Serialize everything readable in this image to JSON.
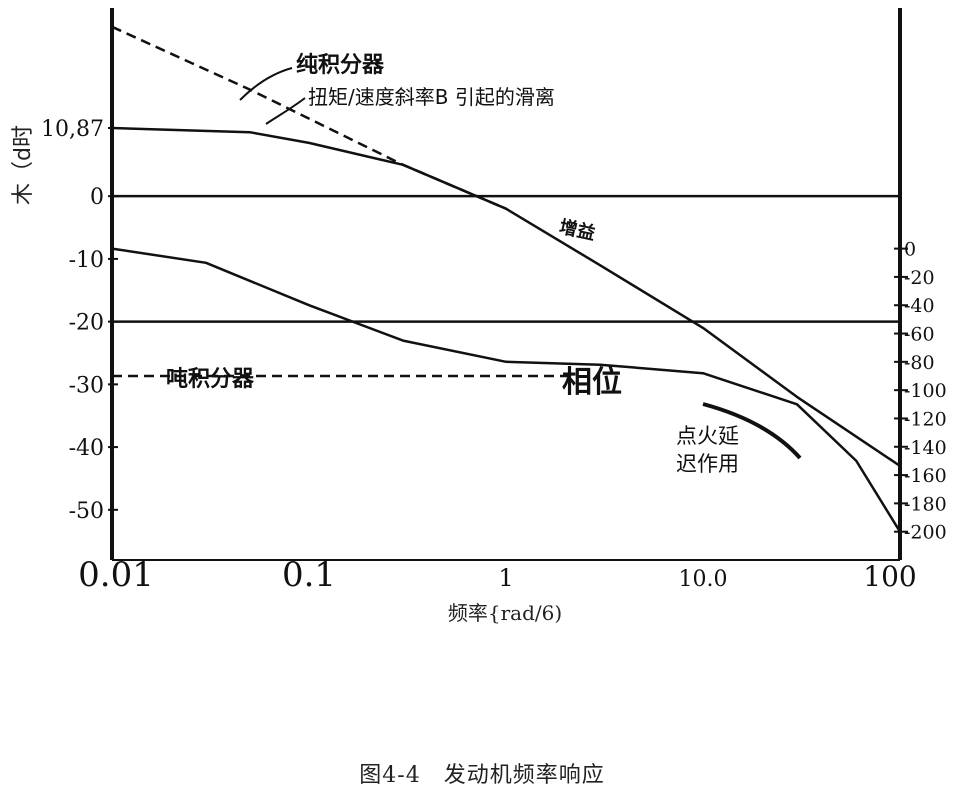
{
  "caption": "图4-4　发动机频率响应",
  "chart_data": {
    "type": "line",
    "xscale": "log",
    "xlim": [
      0.01,
      100
    ],
    "xlabel": "频率{rad/6)",
    "x_ticks": [
      {
        "value": 0.01,
        "label": "0.01"
      },
      {
        "value": 0.1,
        "label": "0.1"
      },
      {
        "value": 1,
        "label": "1"
      },
      {
        "value": 10,
        "label": "10.0"
      },
      {
        "value": 100,
        "label": "100"
      }
    ],
    "left_axis": {
      "label": "木（d时",
      "ylim": [
        -58,
        30
      ],
      "ticks": [
        {
          "value": 10.87,
          "label": "10,87"
        },
        {
          "value": 0,
          "label": "0"
        },
        {
          "value": -10,
          "label": "-10"
        },
        {
          "value": -20,
          "label": "-20"
        },
        {
          "value": -30,
          "label": "-30"
        },
        {
          "value": -40,
          "label": "-40"
        },
        {
          "value": -50,
          "label": "-50"
        }
      ]
    },
    "right_axis": {
      "ylim": [
        -220,
        170
      ],
      "ticks": [
        {
          "value": 0,
          "label": "0"
        },
        {
          "value": -20,
          "label": "-20"
        },
        {
          "value": -40,
          "label": "-40"
        },
        {
          "value": -60,
          "label": "-60"
        },
        {
          "value": -80,
          "label": "-80"
        },
        {
          "value": -100,
          "label": "-100"
        },
        {
          "value": -120,
          "label": "-120"
        },
        {
          "value": -140,
          "label": "-140"
        },
        {
          "value": -160,
          "label": "-160"
        },
        {
          "value": -180,
          "label": "-180"
        },
        {
          "value": -200,
          "label": "-200"
        }
      ]
    },
    "series": [
      {
        "axis": "left",
        "style": "dashed",
        "x": [
          0.01,
          0.05,
          0.3,
          1
        ],
        "y": [
          27,
          17,
          5,
          -2
        ]
      },
      {
        "axis": "left",
        "style": "solid",
        "x": [
          0.01,
          0.05,
          0.1,
          0.3,
          1,
          3,
          10,
          30,
          100
        ],
        "y": [
          10.87,
          10.2,
          8.5,
          5,
          -2,
          -11,
          -21,
          -32,
          -43
        ]
      },
      {
        "axis": "right",
        "style": "solid",
        "x": [
          0.01,
          0.03,
          0.1,
          0.3,
          1,
          3,
          10,
          30,
          60,
          100
        ],
        "y": [
          0,
          -10,
          -40,
          -65,
          -80,
          -82,
          -88,
          -110,
          -150,
          -200
        ]
      },
      {
        "axis": "right",
        "style": "dashed",
        "x": [
          0.01,
          0.1,
          1,
          2.2
        ],
        "y": [
          -90,
          -90,
          -90,
          -90
        ]
      }
    ],
    "hlines": [
      {
        "axis": "left",
        "value": 0
      },
      {
        "axis": "left",
        "value": -20
      }
    ],
    "annotations": [
      {
        "text": "纯积分器"
      },
      {
        "text": "扭矩/速度斜率B 引起的滑离"
      },
      {
        "text": "增益"
      },
      {
        "text": "吨积分器"
      },
      {
        "text": "相位"
      },
      {
        "text": "点火延"
      },
      {
        "text": "迟作用"
      }
    ]
  }
}
